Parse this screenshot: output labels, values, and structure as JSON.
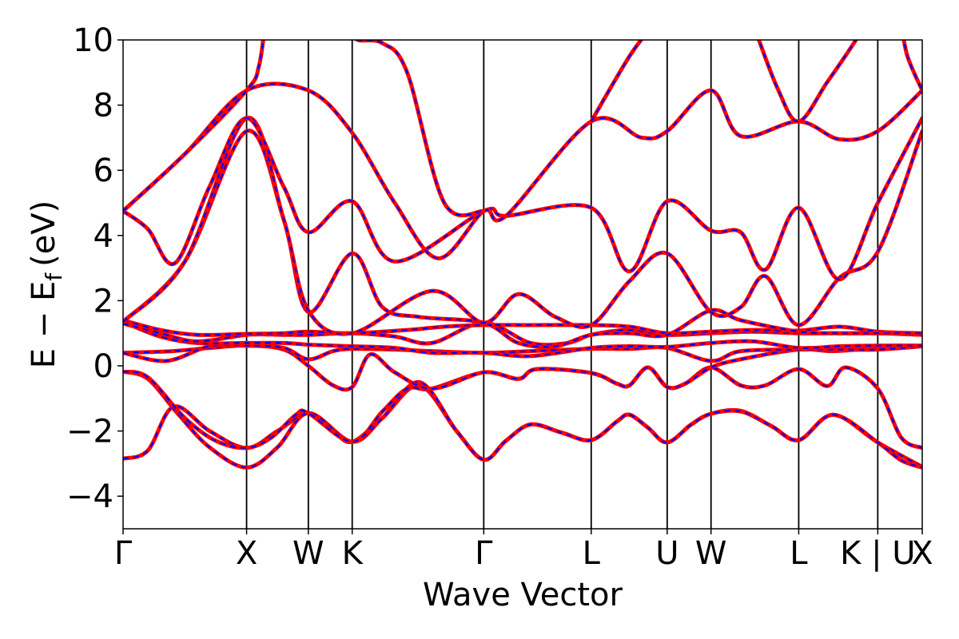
{
  "chart_data": {
    "type": "line",
    "title": "",
    "xlabel": "Wave Vector",
    "ylabel_main": "E − E",
    "ylabel_sub": "f",
    "ylabel_unit": "(eV)",
    "ylim": [
      -5,
      10
    ],
    "xlim": [
      0,
      6.47
    ],
    "yticks": [
      -4,
      -2,
      0,
      2,
      4,
      6,
      8,
      10
    ],
    "ytick_labels": [
      "−4",
      "−2",
      "0",
      "2",
      "4",
      "6",
      "8",
      "10"
    ],
    "kpoints": [
      {
        "label": "Γ",
        "x": 0.0
      },
      {
        "label": "X",
        "x": 1.0
      },
      {
        "label": "W",
        "x": 1.5
      },
      {
        "label": "K",
        "x": 1.855
      },
      {
        "label": "Γ",
        "x": 2.92
      },
      {
        "label": "L",
        "x": 3.79
      },
      {
        "label": "U",
        "x": 4.405
      },
      {
        "label": "W",
        "x": 4.76
      },
      {
        "label": "L",
        "x": 5.47
      },
      {
        "label": "K | U",
        "x": 6.11
      },
      {
        "label": "X",
        "x": 6.47
      }
    ],
    "line_style": {
      "solid_color": "#ff0000",
      "dashed_color": "#0000ff"
    },
    "bands": [
      [
        [
          0,
          -2.85
        ],
        [
          0.2,
          -2.6
        ],
        [
          0.41,
          -1.25
        ],
        [
          0.7,
          -2.0
        ],
        [
          1.0,
          -2.52
        ],
        [
          1.25,
          -2.0
        ],
        [
          1.5,
          -1.45
        ],
        [
          1.7,
          -2.0
        ],
        [
          1.855,
          -2.33
        ],
        [
          2.1,
          -1.6
        ],
        [
          2.4,
          -0.6
        ],
        [
          2.7,
          -2.0
        ],
        [
          2.92,
          -2.88
        ],
        [
          3.1,
          -2.3
        ],
        [
          3.3,
          -1.8
        ],
        [
          3.55,
          -2.05
        ],
        [
          3.79,
          -2.28
        ],
        [
          4.0,
          -1.7
        ],
        [
          4.1,
          -1.5
        ],
        [
          4.25,
          -1.9
        ],
        [
          4.405,
          -2.35
        ],
        [
          4.6,
          -1.8
        ],
        [
          4.76,
          -1.47
        ],
        [
          5.0,
          -1.38
        ],
        [
          5.25,
          -1.85
        ],
        [
          5.47,
          -2.28
        ],
        [
          5.75,
          -1.5
        ],
        [
          6.11,
          -2.35
        ],
        [
          6.47,
          -3.1
        ]
      ],
      [
        [
          0,
          -0.18
        ],
        [
          0.2,
          -0.4
        ],
        [
          0.45,
          -1.5
        ],
        [
          0.7,
          -2.5
        ],
        [
          1.0,
          -3.12
        ],
        [
          1.25,
          -2.5
        ],
        [
          1.5,
          -1.45
        ],
        [
          1.855,
          -2.33
        ],
        [
          2.1,
          -1.6
        ],
        [
          2.4,
          -0.5
        ],
        [
          2.7,
          -2.0
        ],
        [
          2.92,
          -2.88
        ],
        [
          3.1,
          -2.3
        ],
        [
          3.3,
          -1.8
        ],
        [
          3.55,
          -2.05
        ],
        [
          3.79,
          -2.28
        ],
        [
          4.0,
          -1.7
        ],
        [
          4.1,
          -1.5
        ],
        [
          4.25,
          -1.9
        ],
        [
          4.405,
          -2.35
        ],
        [
          4.6,
          -1.8
        ],
        [
          4.76,
          -1.47
        ],
        [
          5.0,
          -1.4
        ],
        [
          5.25,
          -1.85
        ],
        [
          5.47,
          -2.28
        ],
        [
          5.75,
          -1.5
        ],
        [
          6.11,
          -2.35
        ],
        [
          6.3,
          -2.9
        ],
        [
          6.47,
          -3.12
        ]
      ],
      [
        [
          0,
          -0.18
        ],
        [
          0.2,
          -0.35
        ],
        [
          0.5,
          -1.6
        ],
        [
          0.75,
          -2.3
        ],
        [
          1.0,
          -2.52
        ],
        [
          1.2,
          -2.2
        ],
        [
          1.4,
          -1.5
        ],
        [
          1.5,
          -1.45
        ],
        [
          1.855,
          -2.33
        ],
        [
          2.1,
          -1.4
        ],
        [
          2.3,
          -0.7
        ],
        [
          2.5,
          -0.7
        ],
        [
          2.92,
          -0.2
        ],
        [
          3.2,
          -0.4
        ],
        [
          3.35,
          -0.1
        ],
        [
          3.79,
          -0.22
        ],
        [
          4.0,
          -0.55
        ],
        [
          4.1,
          -0.6
        ],
        [
          4.25,
          -0.05
        ],
        [
          4.405,
          -0.65
        ],
        [
          4.55,
          -0.55
        ],
        [
          4.76,
          -0.05
        ],
        [
          5.0,
          -0.6
        ],
        [
          5.2,
          -0.6
        ],
        [
          5.47,
          -0.1
        ],
        [
          5.7,
          -0.62
        ],
        [
          5.85,
          -0.05
        ],
        [
          6.11,
          -0.7
        ],
        [
          6.3,
          -2.2
        ],
        [
          6.47,
          -2.52
        ]
      ],
      [
        [
          0,
          0.4
        ],
        [
          0.4,
          0.45
        ],
        [
          0.7,
          0.55
        ],
        [
          1.0,
          0.62
        ],
        [
          1.3,
          0.5
        ],
        [
          1.5,
          0.0
        ],
        [
          1.7,
          -0.6
        ],
        [
          1.855,
          -0.65
        ],
        [
          2.0,
          0.35
        ],
        [
          2.2,
          -0.2
        ],
        [
          2.5,
          -0.7
        ],
        [
          2.92,
          -0.2
        ],
        [
          3.2,
          -0.4
        ],
        [
          3.35,
          -0.1
        ],
        [
          3.79,
          -0.22
        ],
        [
          4.0,
          -0.55
        ],
        [
          4.1,
          -0.6
        ],
        [
          4.25,
          -0.05
        ],
        [
          4.405,
          -0.65
        ],
        [
          4.55,
          -0.55
        ],
        [
          4.76,
          -0.05
        ],
        [
          5.0,
          0.2
        ],
        [
          5.47,
          0.5
        ],
        [
          5.75,
          0.45
        ],
        [
          6.11,
          0.55
        ],
        [
          6.47,
          0.6
        ]
      ],
      [
        [
          0,
          0.4
        ],
        [
          0.35,
          0.15
        ],
        [
          0.7,
          0.6
        ],
        [
          1.0,
          0.62
        ],
        [
          1.3,
          0.55
        ],
        [
          1.5,
          0.2
        ],
        [
          1.7,
          0.45
        ],
        [
          1.855,
          0.52
        ],
        [
          2.2,
          0.5
        ],
        [
          2.5,
          0.45
        ],
        [
          2.92,
          0.4
        ],
        [
          3.3,
          0.45
        ],
        [
          3.79,
          0.52
        ],
        [
          4.1,
          0.52
        ],
        [
          4.405,
          0.55
        ],
        [
          4.76,
          0.15
        ],
        [
          5.0,
          0.45
        ],
        [
          5.47,
          0.5
        ],
        [
          5.75,
          0.5
        ],
        [
          6.11,
          0.5
        ],
        [
          6.47,
          0.6
        ]
      ],
      [
        [
          0,
          1.35
        ],
        [
          0.3,
          0.9
        ],
        [
          0.6,
          0.7
        ],
        [
          1.0,
          0.7
        ],
        [
          1.3,
          0.7
        ],
        [
          1.5,
          0.65
        ],
        [
          1.855,
          0.6
        ],
        [
          2.2,
          0.55
        ],
        [
          2.5,
          0.4
        ],
        [
          2.92,
          0.4
        ],
        [
          3.3,
          0.3
        ],
        [
          3.79,
          0.55
        ],
        [
          4.1,
          0.6
        ],
        [
          4.405,
          0.58
        ],
        [
          4.76,
          0.7
        ],
        [
          5.1,
          0.75
        ],
        [
          5.47,
          0.55
        ],
        [
          5.8,
          0.6
        ],
        [
          6.11,
          0.62
        ],
        [
          6.47,
          0.62
        ]
      ],
      [
        [
          0,
          1.3
        ],
        [
          0.3,
          1.0
        ],
        [
          0.6,
          0.75
        ],
        [
          1.0,
          0.95
        ],
        [
          1.3,
          0.95
        ],
        [
          1.5,
          0.95
        ],
        [
          1.855,
          1.0
        ],
        [
          2.2,
          0.9
        ],
        [
          2.5,
          0.7
        ],
        [
          2.92,
          1.32
        ],
        [
          3.3,
          0.7
        ],
        [
          3.6,
          0.7
        ],
        [
          3.79,
          0.95
        ],
        [
          4.1,
          1.1
        ],
        [
          4.405,
          0.95
        ],
        [
          4.76,
          1.0
        ],
        [
          5.1,
          1.05
        ],
        [
          5.47,
          1.0
        ],
        [
          5.8,
          1.0
        ],
        [
          6.11,
          1.0
        ],
        [
          6.47,
          0.95
        ]
      ],
      [
        [
          0,
          1.4
        ],
        [
          0.3,
          1.1
        ],
        [
          0.6,
          0.95
        ],
        [
          1.0,
          0.98
        ],
        [
          1.3,
          1.0
        ],
        [
          1.5,
          1.05
        ],
        [
          1.855,
          1.0
        ],
        [
          2.3,
          1.1
        ],
        [
          2.6,
          1.2
        ],
        [
          2.92,
          1.25
        ],
        [
          3.3,
          1.25
        ],
        [
          3.79,
          1.25
        ],
        [
          4.1,
          1.2
        ],
        [
          4.405,
          1.0
        ],
        [
          4.76,
          1.05
        ],
        [
          5.1,
          1.1
        ],
        [
          5.47,
          1.08
        ],
        [
          5.8,
          1.2
        ],
        [
          6.11,
          1.05
        ],
        [
          6.47,
          1.0
        ]
      ],
      [
        [
          0,
          1.35
        ],
        [
          0.5,
          3.2
        ],
        [
          1.0,
          7.2
        ],
        [
          1.3,
          4.5
        ],
        [
          1.5,
          1.65
        ],
        [
          1.855,
          3.45
        ],
        [
          2.1,
          1.8
        ],
        [
          2.4,
          1.5
        ],
        [
          2.92,
          1.32
        ],
        [
          3.2,
          0.7
        ],
        [
          3.5,
          0.6
        ],
        [
          3.79,
          0.95
        ],
        [
          4.1,
          1.0
        ],
        [
          4.405,
          0.95
        ],
        [
          4.76,
          1.7
        ],
        [
          5.0,
          1.4
        ],
        [
          5.47,
          1.05
        ],
        [
          5.8,
          1.0
        ],
        [
          6.11,
          1.0
        ],
        [
          6.47,
          1.0
        ]
      ],
      [
        [
          0,
          1.35
        ],
        [
          0.5,
          3.2
        ],
        [
          1.0,
          7.6
        ],
        [
          1.3,
          4.5
        ],
        [
          1.5,
          1.7
        ],
        [
          1.855,
          1.0
        ],
        [
          2.5,
          2.3
        ],
        [
          2.92,
          1.32
        ],
        [
          3.2,
          2.2
        ],
        [
          3.5,
          1.5
        ],
        [
          3.79,
          1.25
        ],
        [
          4.1,
          2.6
        ],
        [
          4.405,
          3.45
        ],
        [
          4.76,
          1.65
        ],
        [
          5.0,
          1.8
        ],
        [
          5.2,
          2.75
        ],
        [
          5.47,
          1.25
        ],
        [
          5.8,
          2.7
        ],
        [
          6.11,
          3.5
        ],
        [
          6.47,
          7.2
        ]
      ],
      [
        [
          0,
          4.75
        ],
        [
          0.2,
          4.2
        ],
        [
          0.42,
          3.15
        ],
        [
          0.7,
          5.5
        ],
        [
          1.0,
          7.6
        ],
        [
          1.3,
          5.5
        ],
        [
          1.5,
          4.1
        ],
        [
          1.855,
          5.05
        ],
        [
          2.2,
          3.2
        ],
        [
          2.92,
          4.75
        ],
        [
          3.1,
          4.6
        ],
        [
          3.79,
          4.85
        ],
        [
          4.1,
          2.9
        ],
        [
          4.405,
          5.05
        ],
        [
          4.76,
          4.15
        ],
        [
          5.0,
          4.1
        ],
        [
          5.2,
          2.95
        ],
        [
          5.47,
          4.85
        ],
        [
          5.8,
          2.65
        ],
        [
          6.11,
          5.0
        ],
        [
          6.47,
          7.6
        ]
      ],
      [
        [
          0,
          4.75
        ],
        [
          0.5,
          6.5
        ],
        [
          1.0,
          8.45
        ],
        [
          1.5,
          8.45
        ],
        [
          1.855,
          7.15
        ],
        [
          2.2,
          5.0
        ],
        [
          2.55,
          3.3
        ],
        [
          2.92,
          4.75
        ],
        [
          3.1,
          4.6
        ],
        [
          3.79,
          7.5
        ],
        [
          4.2,
          7.0
        ],
        [
          4.405,
          7.2
        ],
        [
          4.76,
          8.45
        ],
        [
          5.0,
          7.05
        ],
        [
          5.47,
          7.5
        ],
        [
          5.8,
          6.95
        ],
        [
          6.11,
          7.2
        ],
        [
          6.47,
          8.45
        ]
      ],
      [
        [
          0,
          4.75
        ],
        [
          0.5,
          6.5
        ],
        [
          1.0,
          8.45
        ],
        [
          1.1,
          9.2
        ],
        [
          1.15,
          10.5
        ]
      ],
      [
        [
          1.855,
          10.3
        ],
        [
          1.9,
          10.0
        ],
        [
          2.1,
          9.9
        ],
        [
          2.3,
          9.0
        ],
        [
          2.6,
          5.0
        ],
        [
          2.92,
          4.75
        ]
      ],
      [
        [
          3.79,
          7.5
        ],
        [
          4.1,
          9.5
        ],
        [
          4.3,
          10.5
        ]
      ],
      [
        [
          5.1,
          10.5
        ],
        [
          5.3,
          8.5
        ],
        [
          5.47,
          7.5
        ],
        [
          5.7,
          8.7
        ],
        [
          5.95,
          10.1
        ],
        [
          6.0,
          10.5
        ]
      ],
      [
        [
          6.3,
          10.5
        ],
        [
          6.35,
          9.5
        ],
        [
          6.47,
          8.45
        ]
      ]
    ]
  }
}
